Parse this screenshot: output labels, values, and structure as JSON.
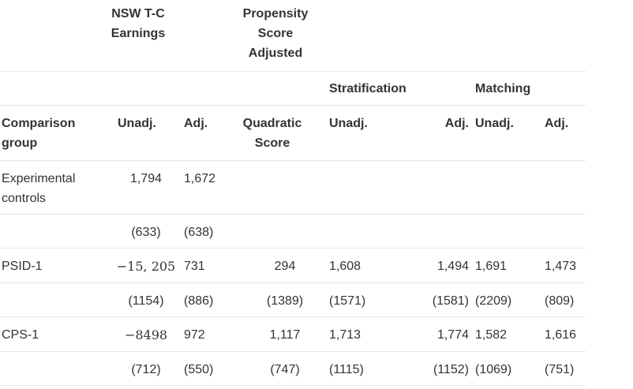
{
  "header": {
    "nsw_tc_earnings": "NSW T-C Earnings",
    "propensity_score_adjusted": "Propensity Score Adjusted",
    "stratification": "Stratification",
    "matching": "Matching",
    "comparison_group": "Comparison group",
    "unadj": "Unadj.",
    "adj": "Adj.",
    "quadratic_score": "Quadratic Score",
    "strat_unadj": "Unadj.",
    "strat_adj": "Adj.",
    "match_unadj": "Unadj.",
    "match_adj": "Adj."
  },
  "rows": [
    {
      "group": "Experimental controls",
      "estimates": [
        "1,794",
        "1,672",
        "",
        "",
        "",
        "",
        ""
      ],
      "errors": [
        "(633)",
        "(638)",
        "",
        "",
        "",
        "",
        ""
      ]
    },
    {
      "group": "PSID-1",
      "estimates": [
        "−15, 205",
        "731",
        "294",
        "1,608",
        "1,494",
        "1,691",
        "1,473"
      ],
      "errors": [
        "(1154)",
        "(886)",
        "(1389)",
        "(1571)",
        "(1581)",
        "(2209)",
        "(809)"
      ]
    },
    {
      "group": "CPS-1",
      "estimates": [
        "−8498",
        "972",
        "1,117",
        "1,713",
        "1,774",
        "1,582",
        "1,616"
      ],
      "errors": [
        "(712)",
        "(550)",
        "(747)",
        "(1115)",
        "(1152)",
        "(1069)",
        "(751)"
      ]
    }
  ]
}
